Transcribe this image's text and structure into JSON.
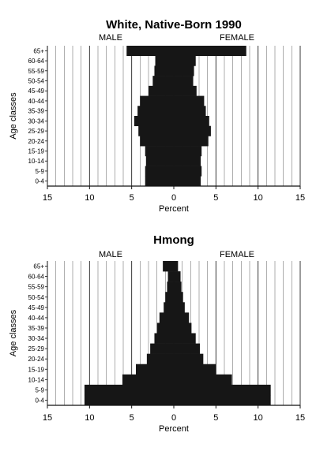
{
  "chart_data": [
    {
      "type": "bar",
      "subtype": "population-pyramid",
      "title": "White, Native-Born 1990",
      "left_label": "MALE",
      "right_label": "FEMALE",
      "xlabel": "Percent",
      "ylabel": "Age classes",
      "xlim": [
        -15,
        15
      ],
      "xticks": [
        -15,
        -10,
        -5,
        0,
        5,
        10,
        15
      ],
      "xticklabels": [
        "15",
        "10",
        "5",
        "0",
        "5",
        "10",
        "15"
      ],
      "grid": true,
      "categories": [
        "0-4",
        "5-9",
        "10-14",
        "15-19",
        "20-24",
        "25-29",
        "30-34",
        "35-39",
        "40-44",
        "45-49",
        "50-54",
        "55-59",
        "60-64",
        "65+"
      ],
      "series": [
        {
          "name": "MALE",
          "values": [
            3.4,
            3.4,
            3.3,
            3.4,
            4.0,
            4.2,
            4.7,
            4.3,
            4.0,
            3.0,
            2.5,
            2.3,
            2.2,
            5.6
          ]
        },
        {
          "name": "FEMALE",
          "values": [
            3.2,
            3.3,
            3.2,
            3.3,
            4.1,
            4.4,
            4.2,
            3.8,
            3.6,
            2.7,
            2.3,
            2.4,
            2.6,
            8.6
          ]
        }
      ]
    },
    {
      "type": "bar",
      "subtype": "population-pyramid",
      "title": "Hmong",
      "left_label": "MALE",
      "right_label": "FEMALE",
      "xlabel": "Percent",
      "ylabel": "Age classes",
      "xlim": [
        -15,
        15
      ],
      "xticks": [
        -15,
        -10,
        -5,
        0,
        5,
        10,
        15
      ],
      "xticklabels": [
        "15",
        "10",
        "5",
        "0",
        "5",
        "10",
        "15"
      ],
      "grid": true,
      "categories": [
        "0-4",
        "5-9",
        "10-14",
        "15-19",
        "20-24",
        "25-29",
        "30-34",
        "35-39",
        "40-44",
        "45-49",
        "50-54",
        "55-59",
        "60-64",
        "65+"
      ],
      "series": [
        {
          "name": "MALE",
          "values": [
            10.6,
            10.6,
            6.1,
            4.5,
            3.2,
            2.8,
            2.3,
            2.0,
            1.7,
            1.2,
            1.0,
            0.8,
            0.7,
            1.3
          ]
        },
        {
          "name": "FEMALE",
          "values": [
            11.5,
            11.5,
            6.9,
            5.0,
            3.5,
            3.1,
            2.6,
            2.1,
            1.8,
            1.3,
            1.1,
            0.9,
            0.8,
            0.5
          ]
        }
      ]
    }
  ]
}
